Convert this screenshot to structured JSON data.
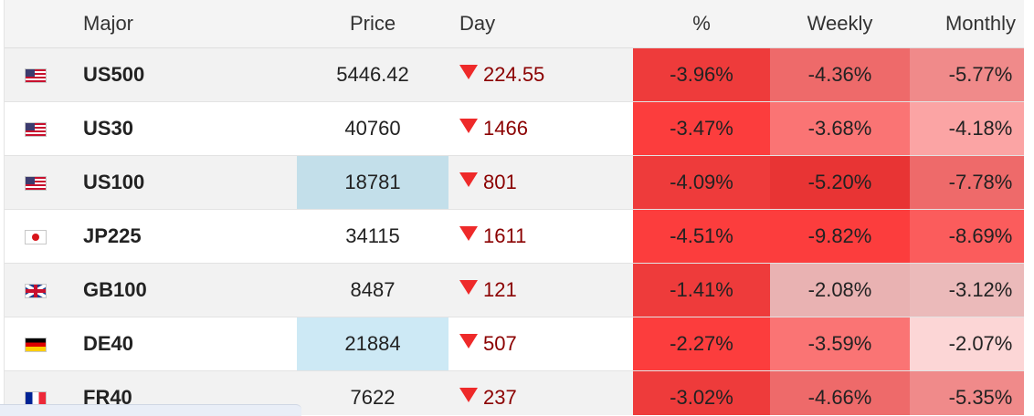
{
  "table": {
    "headers": {
      "symbol": "Major",
      "price": "Price",
      "day": "Day",
      "pct": "%",
      "weekly": "Weekly",
      "monthly": "Monthly"
    },
    "rows": [
      {
        "flag": "us-flag-icon",
        "symbol": "US500",
        "price": "5446.42",
        "day": "224.55",
        "pct": "-3.96%",
        "weekly": "-4.36%",
        "monthly": "-5.77%"
      },
      {
        "flag": "us-flag-icon",
        "symbol": "US30",
        "price": "40760",
        "day": "1466",
        "pct": "-3.47%",
        "weekly": "-3.68%",
        "monthly": "-4.18%"
      },
      {
        "flag": "us-flag-icon",
        "symbol": "US100",
        "price": "18781",
        "day": "801",
        "pct": "-4.09%",
        "weekly": "-5.20%",
        "monthly": "-7.78%"
      },
      {
        "flag": "japan-flag-icon",
        "symbol": "JP225",
        "price": "34115",
        "day": "1611",
        "pct": "-4.51%",
        "weekly": "-9.82%",
        "monthly": "-8.69%"
      },
      {
        "flag": "uk-flag-icon",
        "symbol": "GB100",
        "price": "8487",
        "day": "121",
        "pct": "-1.41%",
        "weekly": "-2.08%",
        "monthly": "-3.12%"
      },
      {
        "flag": "germany-flag-icon",
        "symbol": "DE40",
        "price": "21884",
        "day": "507",
        "pct": "-2.27%",
        "weekly": "-3.59%",
        "monthly": "-2.07%"
      },
      {
        "flag": "france-flag-icon",
        "symbol": "FR40",
        "price": "7622",
        "day": "237",
        "pct": "-3.02%",
        "weekly": "-4.66%",
        "monthly": "-5.35%"
      }
    ]
  },
  "colors": {
    "down_arrow": "#ee2a2a",
    "day_text": "#8b0000",
    "price_highlight_blue": "#c3dfea",
    "price_highlight_lightblue": "#cde9f5",
    "heat": [
      "#ee3b3b",
      "#fc3d3d",
      "#e85858",
      "#ee6a6a",
      "#fa7474",
      "#f08a8a",
      "#fba4a4",
      "#e9b2b2",
      "#fcd6d6"
    ]
  }
}
